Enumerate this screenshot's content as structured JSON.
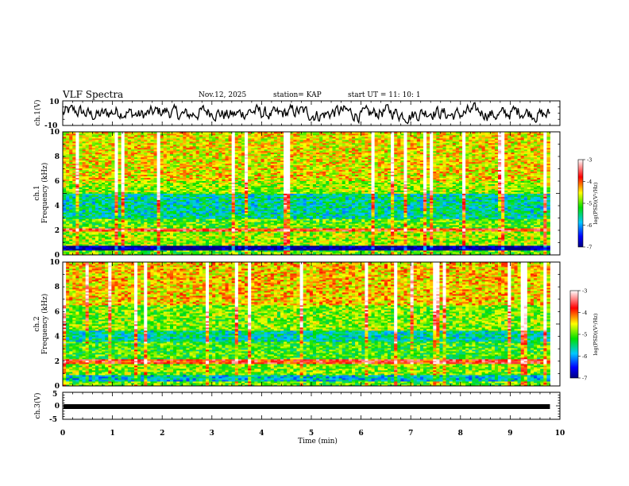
{
  "header": {
    "title": "VLF Spectra",
    "date": "Nov.12, 2025",
    "station": "station= KAP",
    "start_ut": "start  UT  =   11: 10: 1"
  },
  "chart_data": [
    {
      "type": "line",
      "panel": "ch1-waveform",
      "ylabel": "ch.1(V)",
      "ylim": [
        -10,
        10
      ],
      "y_tick_labels": [
        "10",
        "-10"
      ],
      "xlim": [
        0,
        10
      ],
      "note_series": "continuous noisy waveform between about -8 and 8 V from 0 to 9.8 min"
    },
    {
      "type": "heatmap",
      "panel": "ch1-spectrogram",
      "ylabel": "ch.1\nFrequency (kHz)",
      "ylabel_line1": "ch.1",
      "ylabel_line2": "Frequency (kHz)",
      "ylim": [
        0,
        10
      ],
      "y_tick_labels": [
        "0",
        "2",
        "4",
        "6",
        "8",
        "10"
      ],
      "xlim": [
        0,
        10
      ],
      "data_xmax": 9.8,
      "colorbar": {
        "label": "log(PSD)(V²/Hz)",
        "range": [
          -7,
          -3
        ],
        "tick_labels": [
          "-3",
          "-4",
          "-5",
          "-6",
          "-7"
        ]
      },
      "bands": [
        {
          "from": 0.0,
          "to": 0.35,
          "level": -5.0
        },
        {
          "from": 0.35,
          "to": 0.75,
          "level": -7.0
        },
        {
          "from": 0.75,
          "to": 1.9,
          "level": -4.8
        },
        {
          "from": 1.9,
          "to": 2.2,
          "level": -3.8
        },
        {
          "from": 2.2,
          "to": 3.0,
          "level": -5.0
        },
        {
          "from": 3.0,
          "to": 5.0,
          "level": -5.6
        },
        {
          "from": 5.0,
          "to": 6.0,
          "level": -4.8
        },
        {
          "from": 6.0,
          "to": 10.0,
          "level": -4.5
        }
      ]
    },
    {
      "type": "heatmap",
      "panel": "ch2-spectrogram",
      "ylabel_line1": "ch.2",
      "ylabel_line2": "Frequency (kHz)",
      "ylim": [
        0,
        10
      ],
      "y_tick_labels": [
        "0",
        "2",
        "4",
        "6",
        "8",
        "10"
      ],
      "xlim": [
        0,
        10
      ],
      "data_xmax": 9.8,
      "colorbar": {
        "label": "log(PSD)(V²/Hz)",
        "range": [
          -7,
          -3
        ],
        "tick_labels": [
          "-3",
          "-4",
          "-5",
          "-6",
          "-7"
        ]
      },
      "bands": [
        {
          "from": 0.0,
          "to": 0.4,
          "level": -5.0
        },
        {
          "from": 0.4,
          "to": 0.9,
          "level": -5.8
        },
        {
          "from": 0.9,
          "to": 1.8,
          "level": -4.9
        },
        {
          "from": 1.8,
          "to": 2.2,
          "level": -3.8
        },
        {
          "from": 2.2,
          "to": 3.6,
          "level": -5.1
        },
        {
          "from": 3.6,
          "to": 4.5,
          "level": -5.6
        },
        {
          "from": 4.5,
          "to": 6.5,
          "level": -4.9
        },
        {
          "from": 6.5,
          "to": 10.0,
          "level": -4.4
        }
      ]
    },
    {
      "type": "line",
      "panel": "ch3-waveform",
      "ylabel": "ch.3(V)",
      "ylim": [
        -5,
        5
      ],
      "y_tick_labels": [
        "5",
        "0",
        "-5"
      ],
      "xlim": [
        0,
        10
      ],
      "series": [
        {
          "x": [
            0,
            9.8
          ],
          "y": [
            0,
            0
          ]
        }
      ],
      "xlabel": "Time  (min)",
      "x_tick_labels": [
        "0",
        "1",
        "2",
        "3",
        "4",
        "5",
        "6",
        "7",
        "8",
        "9",
        "10"
      ]
    }
  ]
}
